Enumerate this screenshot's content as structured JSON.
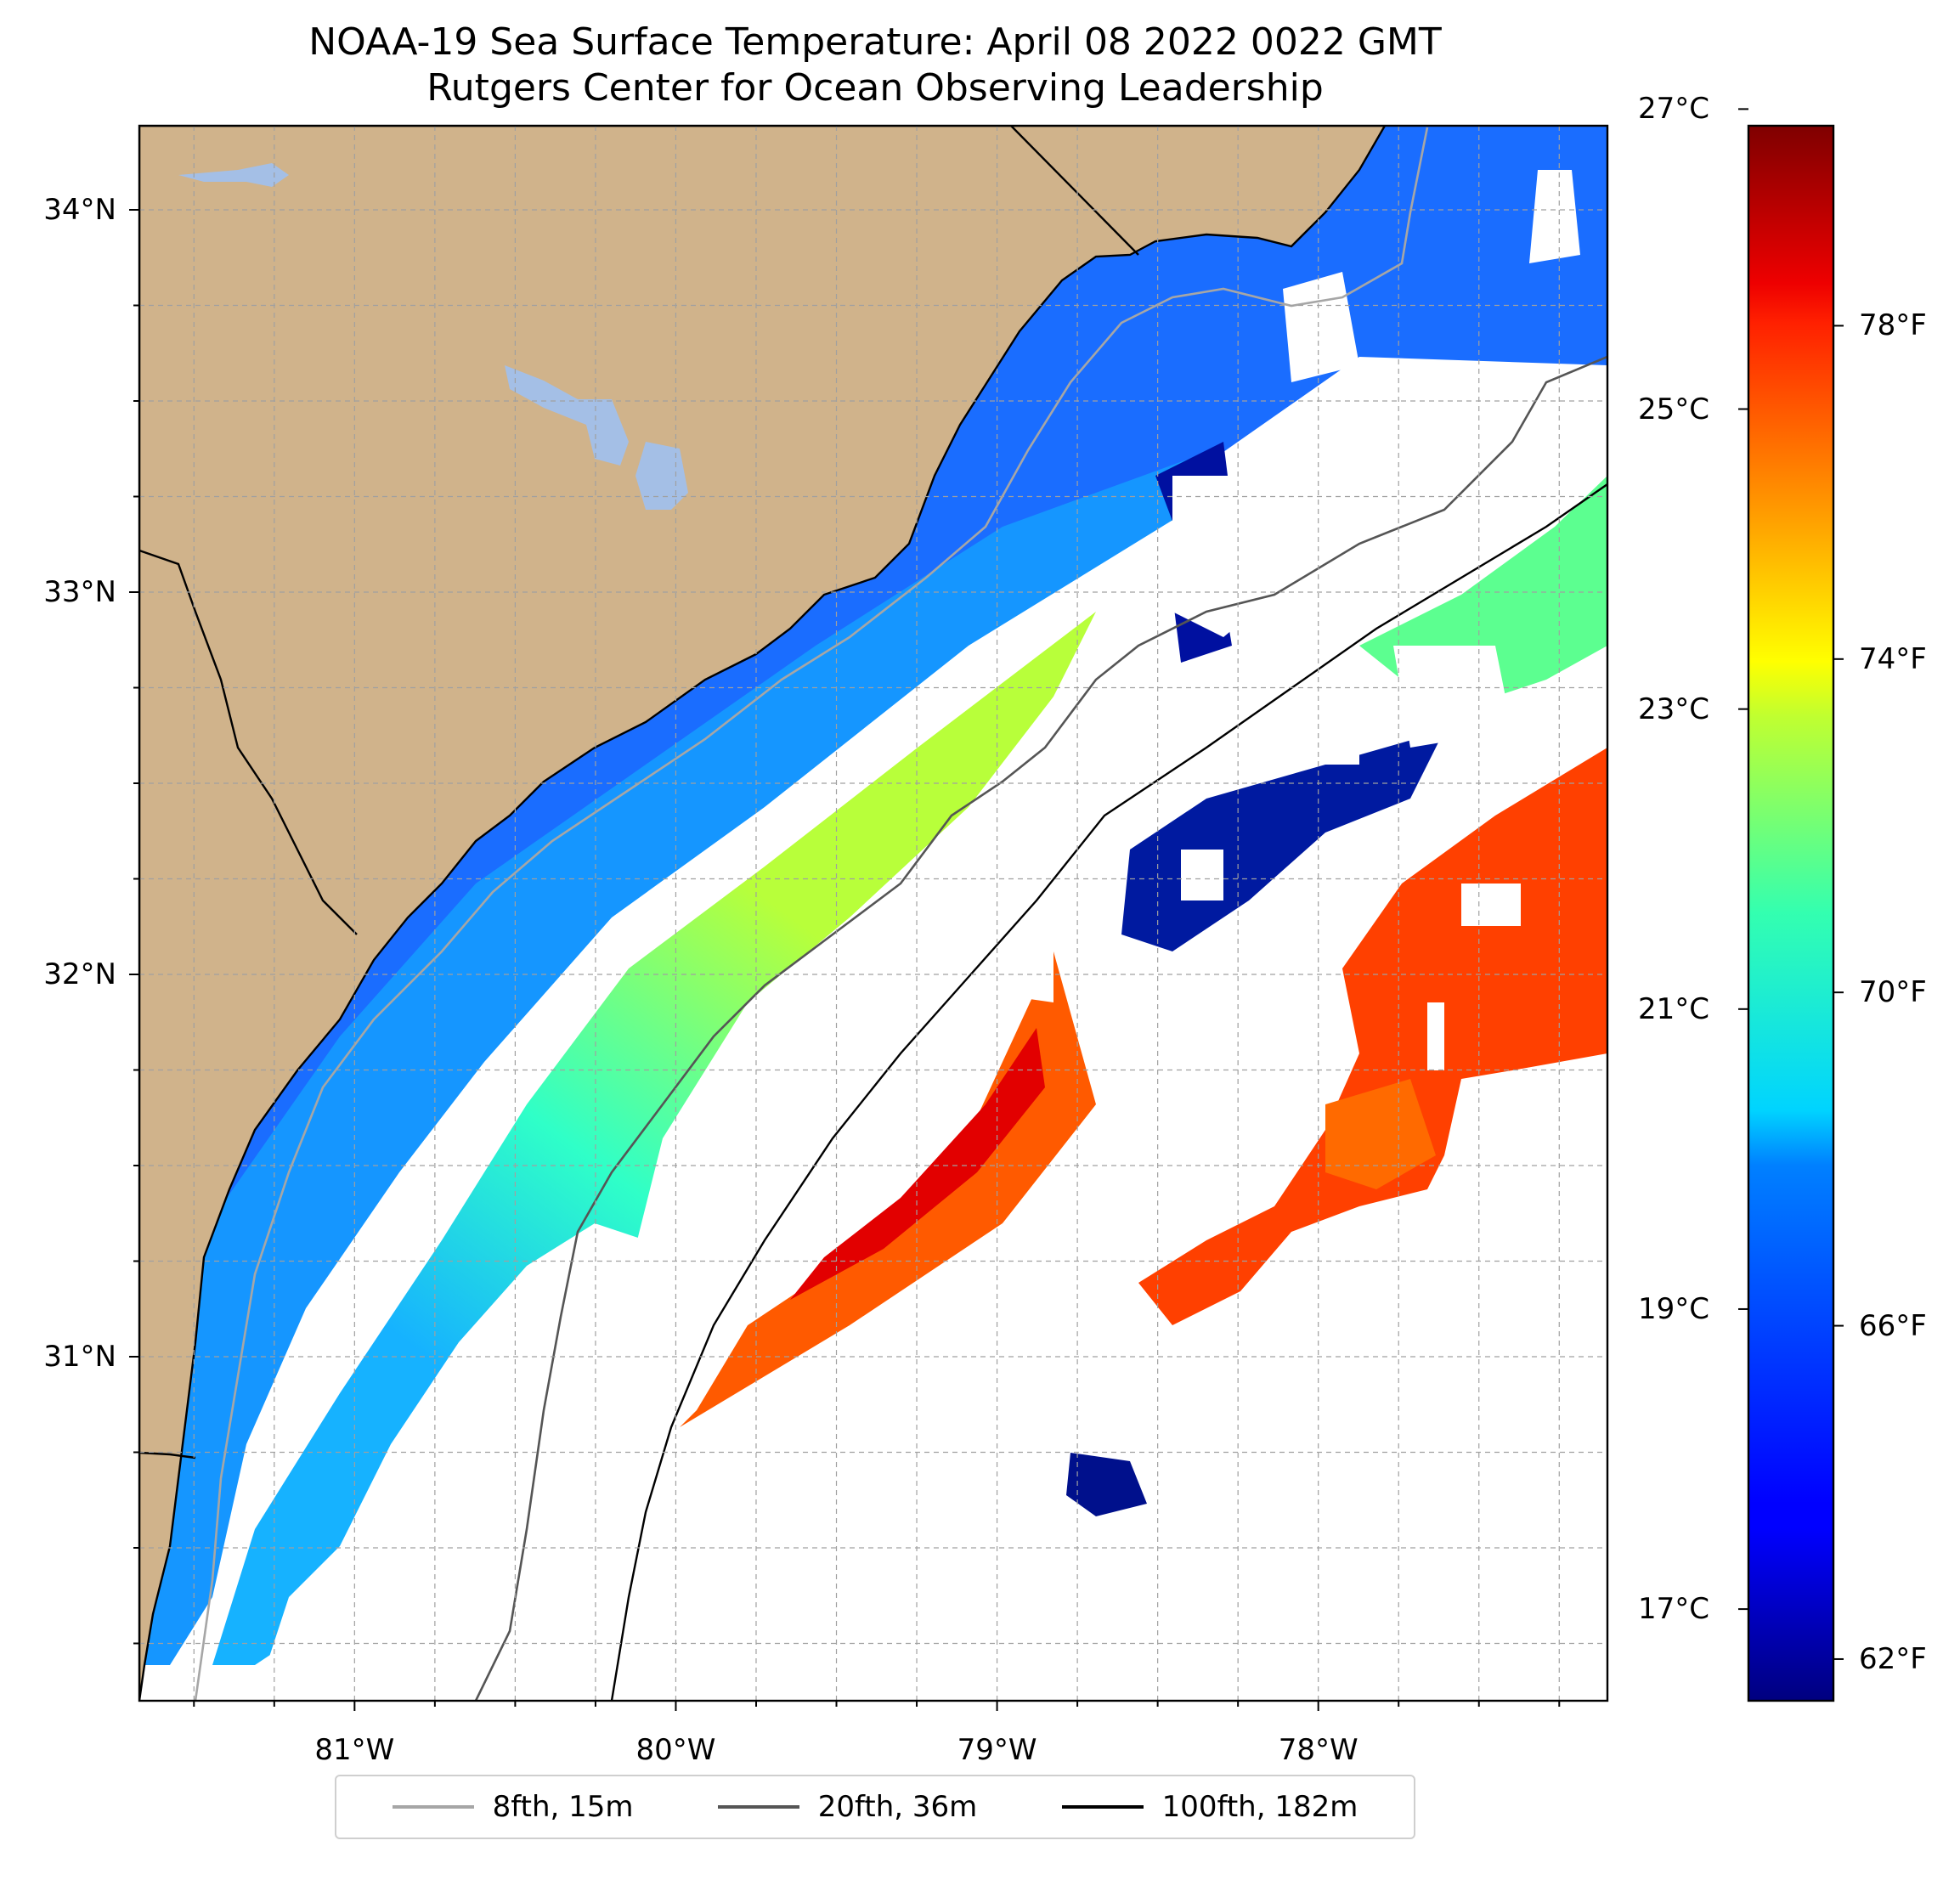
{
  "title": {
    "line1": "NOAA-19 Sea Surface Temperature: April 08 2022 0022 GMT",
    "line2": "Rutgers Center for Ocean Observing Leadership"
  },
  "map": {
    "extent": {
      "lon": [
        -81.67,
        -77.1
      ],
      "lat": [
        30.1,
        34.22
      ]
    },
    "colors": {
      "land": "#d0b38b",
      "lakes": "#a4bfe6",
      "cloud": "#ffffff",
      "grid": "#a0a0a0"
    },
    "lat_ticks": [
      {
        "value": 34,
        "label": "34°N"
      },
      {
        "value": 33,
        "label": "33°N"
      },
      {
        "value": 32,
        "label": "32°N"
      },
      {
        "value": 31,
        "label": "31°N"
      }
    ],
    "lon_ticks": [
      {
        "value": -81,
        "label": "81°W"
      },
      {
        "value": -80,
        "label": "80°W"
      },
      {
        "value": -79,
        "label": "79°W"
      },
      {
        "value": -78,
        "label": "78°W"
      }
    ]
  },
  "colorbar": {
    "colormap": "jet",
    "range_f": [
      61.5,
      80.4
    ],
    "celsius_ticks": [
      {
        "value": 27,
        "label": "27°C"
      },
      {
        "value": 25,
        "label": "25°C"
      },
      {
        "value": 23,
        "label": "23°C"
      },
      {
        "value": 21,
        "label": "21°C"
      },
      {
        "value": 19,
        "label": "19°C"
      },
      {
        "value": 17,
        "label": "17°C"
      }
    ],
    "fahrenheit_ticks": [
      {
        "value": 78,
        "label": "78°F"
      },
      {
        "value": 74,
        "label": "74°F"
      },
      {
        "value": 70,
        "label": "70°F"
      },
      {
        "value": 66,
        "label": "66°F"
      },
      {
        "value": 62,
        "label": "62°F"
      }
    ]
  },
  "legend": {
    "items": [
      {
        "label": "8fth, 15m",
        "color": "#a6a6a6"
      },
      {
        "label": "20fth, 36m",
        "color": "#555555"
      },
      {
        "label": "100fth, 182m",
        "color": "#000000"
      }
    ]
  }
}
